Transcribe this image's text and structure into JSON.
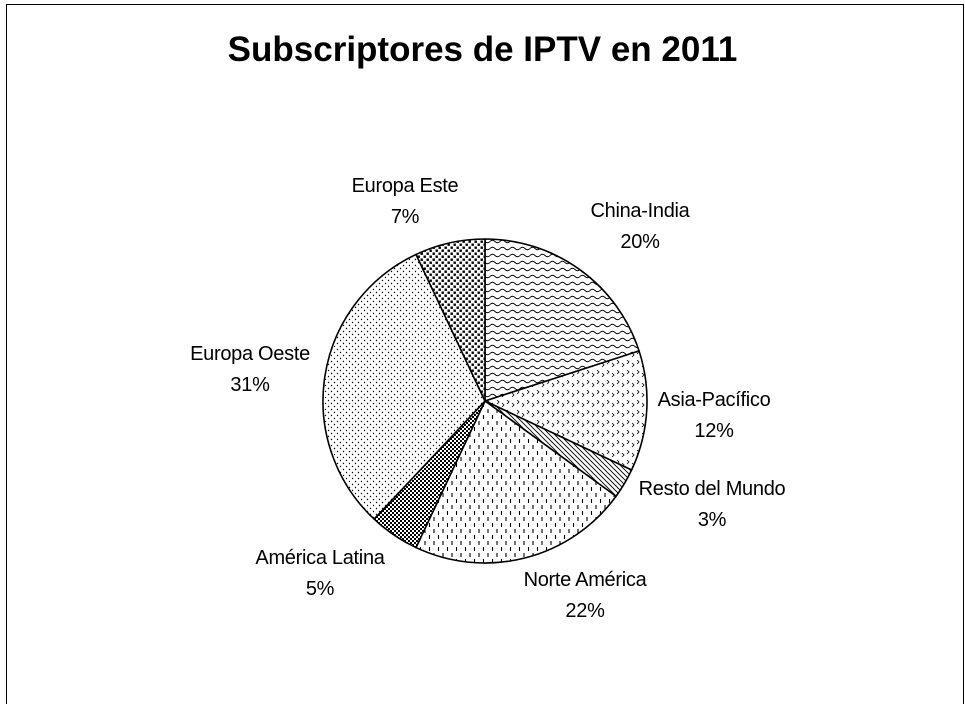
{
  "chart_data": {
    "type": "pie",
    "title": "Subscriptores de IPTV en 2011",
    "slices": [
      {
        "label": "China-India",
        "value": 20,
        "percent_label": "20%",
        "pattern": "wave"
      },
      {
        "label": "Asia-Pacífico",
        "value": 12,
        "percent_label": "12%",
        "pattern": "diamond"
      },
      {
        "label": "Resto del Mundo",
        "value": 3,
        "percent_label": "3%",
        "pattern": "diagonal"
      },
      {
        "label": "Norte América",
        "value": 22,
        "percent_label": "22%",
        "pattern": "dashes"
      },
      {
        "label": "América Latina",
        "value": 5,
        "percent_label": "5%",
        "pattern": "checker"
      },
      {
        "label": "Europa Oeste",
        "value": 31,
        "percent_label": "31%",
        "pattern": "dots"
      },
      {
        "label": "Europa Este",
        "value": 7,
        "percent_label": "7%",
        "pattern": "bigdots"
      }
    ],
    "legend": "none"
  }
}
